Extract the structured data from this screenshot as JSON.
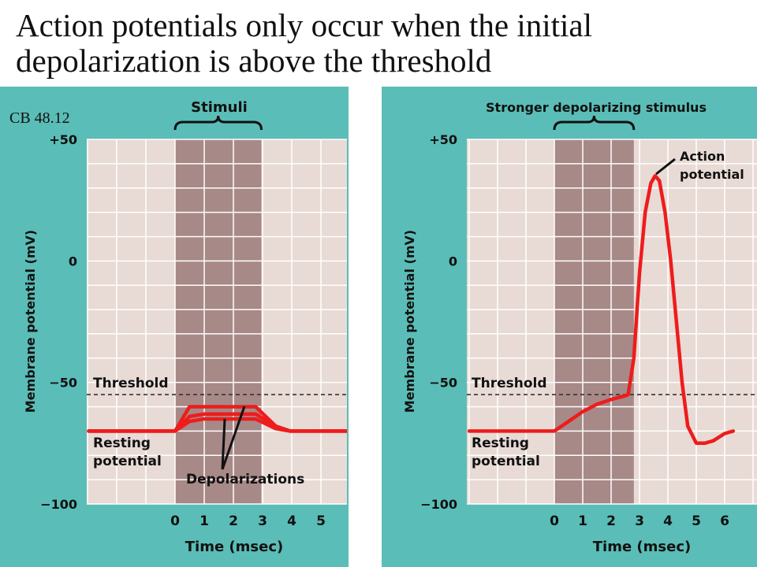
{
  "slide": {
    "title_line1": "Action potentials only occur when the initial",
    "title_line2": "depolarization is above the threshold",
    "credit": "CB 48.12"
  },
  "colors": {
    "panel_bg": "#5bbdb7",
    "plot_bg": "#e8dad5",
    "stimulus_band": "#a78987",
    "grid": "#ffffff",
    "trace": "#ee1c1c",
    "threshold_line": "#333333"
  },
  "chart_data": [
    {
      "type": "line",
      "panel": "left",
      "bracket_label": "Stimuli",
      "xlabel": "Time (msec)",
      "ylabel": "Membrane potential (mV)",
      "xlim": [
        -3,
        6
      ],
      "ylim": [
        -100,
        50
      ],
      "xticks": [
        "0",
        "1",
        "2",
        "3",
        "4",
        "5"
      ],
      "yticks": [
        "+50",
        "0",
        "−50",
        "−100"
      ],
      "grid": true,
      "stimulus_window": [
        0,
        3
      ],
      "threshold": -55,
      "threshold_label": "Threshold",
      "resting_label_line1": "Resting",
      "resting_label_line2": "potential",
      "annotation": "Depolarizations",
      "series": [
        {
          "x": [
            -3,
            0,
            0.5,
            1,
            2,
            2.8,
            3.5,
            4,
            6
          ],
          "y": [
            -70,
            -70,
            -60,
            -60,
            -60,
            -60,
            -68,
            -70,
            -70
          ]
        },
        {
          "x": [
            -3,
            0,
            0.5,
            1,
            2,
            2.8,
            3.5,
            4,
            6
          ],
          "y": [
            -70,
            -70,
            -64,
            -63,
            -63,
            -63,
            -68,
            -70,
            -70
          ]
        },
        {
          "x": [
            -3,
            0,
            0.5,
            1,
            2,
            2.8,
            3.5,
            4,
            6
          ],
          "y": [
            -70,
            -70,
            -66,
            -65,
            -65,
            -65,
            -69,
            -70,
            -70
          ]
        }
      ]
    },
    {
      "type": "line",
      "panel": "right",
      "bracket_label": "Stronger depolarizing stimulus",
      "xlabel": "Time (msec)",
      "ylabel": "Membrane potential (mV)",
      "xlim": [
        -3,
        6.3
      ],
      "ylim": [
        -100,
        50
      ],
      "xticks": [
        "0",
        "1",
        "2",
        "3",
        "4",
        "5",
        "6"
      ],
      "yticks": [
        "+50",
        "0",
        "−50",
        "−100"
      ],
      "grid": true,
      "stimulus_window": [
        0,
        2.8
      ],
      "threshold": -55,
      "threshold_label": "Threshold",
      "resting_label_line1": "Resting",
      "resting_label_line2": "potential",
      "annotation_line1": "Action",
      "annotation_line2": "potential",
      "series": [
        {
          "x": [
            -3,
            0,
            0.5,
            1,
            1.5,
            2,
            2.5,
            2.6,
            2.8,
            3.0,
            3.2,
            3.4,
            3.55,
            3.7,
            3.9,
            4.1,
            4.3,
            4.5,
            4.7,
            5.0,
            5.3,
            5.6,
            6.0,
            6.3
          ],
          "y": [
            -70,
            -70,
            -66,
            -62,
            -59,
            -57,
            -55.5,
            -55,
            -40,
            -5,
            20,
            32,
            35,
            33,
            20,
            0,
            -25,
            -50,
            -68,
            -75,
            -75,
            -74,
            -71,
            -70
          ]
        }
      ]
    }
  ]
}
